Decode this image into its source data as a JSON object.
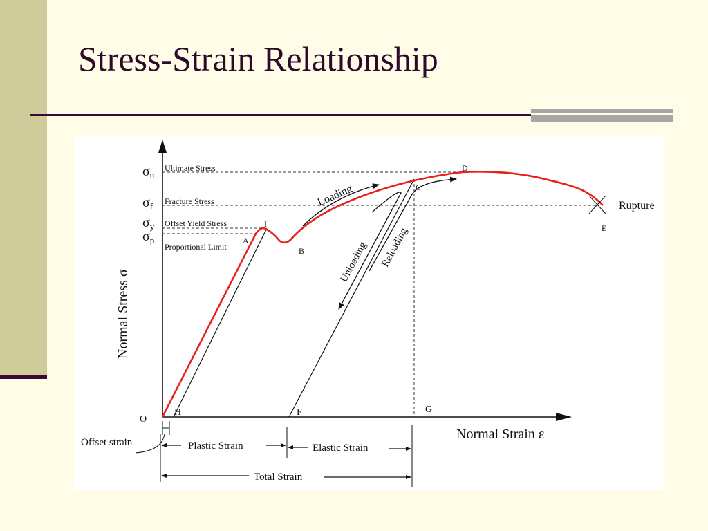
{
  "slide": {
    "title": "Stress-Strain Relationship"
  },
  "colors": {
    "background": "#fffde8",
    "accent_band": "#cfcb9a",
    "rule": "#3b0a34",
    "curve": "#e8211c"
  },
  "diagram": {
    "y_axis_label": "Normal Stress σ",
    "x_axis_label": "Normal Strain ε",
    "sigma_symbol": "σ",
    "sub_u": "u",
    "sub_f": "f",
    "sub_y": "y",
    "sub_p": "p",
    "ultimate_stress": "Ultimate Stress",
    "fracture_stress": "Fracture Stress",
    "offset_yield_stress": "Offset Yield Stress",
    "proportional_limit": "Proportional Limit",
    "rupture": "Rupture",
    "loading": "Loading",
    "unloading": "Unloading",
    "reloading": "Reloading",
    "points": {
      "O": "O",
      "H": "H",
      "F": "F",
      "G": "G",
      "A": "A",
      "I": "I",
      "B": "B",
      "C": "C",
      "D": "D",
      "E": "E"
    },
    "offset_strain": "Offset strain",
    "plastic_strain": "Plastic Strain",
    "elastic_strain": "Elastic Strain",
    "total_strain": "Total Strain"
  }
}
